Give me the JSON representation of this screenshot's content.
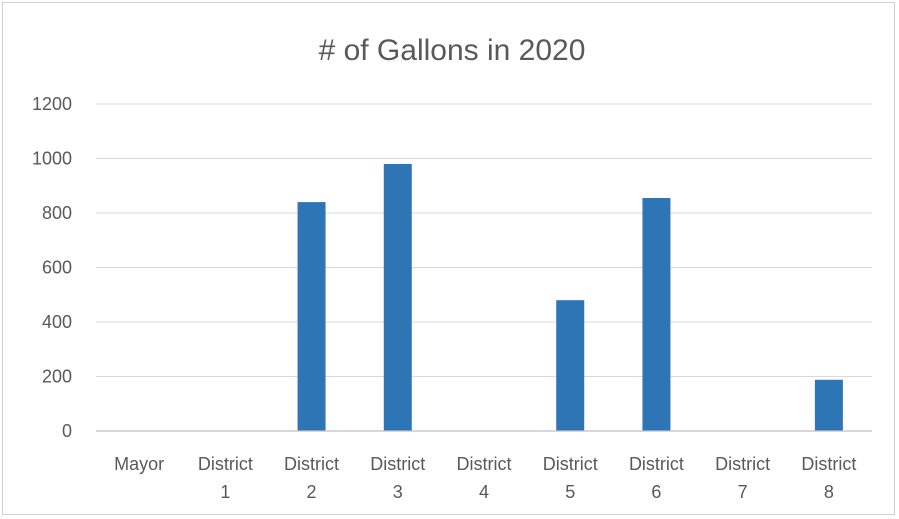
{
  "chart_data": {
    "type": "bar",
    "title": "# of Gallons in 2020",
    "xlabel": "",
    "ylabel": "",
    "categories": [
      [
        "Mayor"
      ],
      [
        "District",
        "1"
      ],
      [
        "District",
        "2"
      ],
      [
        "District",
        "3"
      ],
      [
        "District",
        "4"
      ],
      [
        "District",
        "5"
      ],
      [
        "District",
        "6"
      ],
      [
        "District",
        "7"
      ],
      [
        "District",
        "8"
      ]
    ],
    "values": [
      0,
      0,
      840,
      980,
      0,
      480,
      855,
      0,
      188
    ],
    "ylim": [
      0,
      1200
    ],
    "yticks": [
      0,
      200,
      400,
      600,
      800,
      1000,
      1200
    ],
    "grid": true,
    "legend": "none",
    "bar_color": "#2e75b6"
  }
}
